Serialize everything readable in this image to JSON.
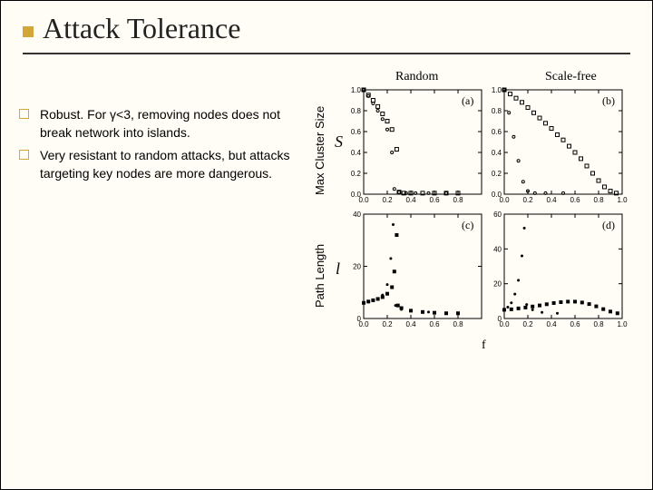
{
  "title": "Attack Tolerance",
  "bullets": [
    "Robust.  For γ<3, removing nodes does not break network into islands.",
    "Very resistant to random attacks, but attacks targeting key nodes are more dangerous."
  ],
  "vertical_labels": {
    "top": "Max Cluster Size",
    "bottom": "Path Length"
  },
  "column_headers": {
    "left": "Random",
    "right": "Scale-free"
  },
  "axis_symbols": {
    "row1_y": "S",
    "row2_y": "l",
    "x": "f"
  },
  "panels": {
    "a": {
      "letter": "(a)",
      "xlim": [
        0.0,
        1.0
      ],
      "xticks": [
        0.0,
        0.2,
        0.4,
        0.6,
        0.8
      ],
      "ylim": [
        0.0,
        1.0
      ],
      "yticks": [
        0.0,
        0.2,
        0.4,
        0.6,
        0.8,
        1.0
      ],
      "series_squares": {
        "marker": "open-square",
        "size": 4,
        "points": [
          [
            0.0,
            1.0
          ],
          [
            0.04,
            0.95
          ],
          [
            0.08,
            0.9
          ],
          [
            0.12,
            0.84
          ],
          [
            0.16,
            0.77
          ],
          [
            0.2,
            0.7
          ],
          [
            0.24,
            0.62
          ],
          [
            0.28,
            0.43
          ],
          [
            0.3,
            0.02
          ],
          [
            0.34,
            0.01
          ],
          [
            0.4,
            0.01
          ],
          [
            0.5,
            0.01
          ],
          [
            0.6,
            0.01
          ],
          [
            0.7,
            0.01
          ],
          [
            0.8,
            0.01
          ]
        ]
      },
      "series_circles": {
        "marker": "open-circle",
        "size": 3,
        "points": [
          [
            0.0,
            1.0
          ],
          [
            0.04,
            0.94
          ],
          [
            0.08,
            0.87
          ],
          [
            0.12,
            0.8
          ],
          [
            0.16,
            0.72
          ],
          [
            0.2,
            0.62
          ],
          [
            0.24,
            0.4
          ],
          [
            0.26,
            0.05
          ],
          [
            0.3,
            0.02
          ],
          [
            0.36,
            0.01
          ],
          [
            0.44,
            0.01
          ],
          [
            0.55,
            0.01
          ],
          [
            0.7,
            0.01
          ]
        ]
      }
    },
    "b": {
      "letter": "(b)",
      "xlim": [
        0.0,
        1.0
      ],
      "xticks": [
        0.0,
        0.2,
        0.4,
        0.6,
        0.8,
        1.0
      ],
      "ylim": [
        0.0,
        1.0
      ],
      "yticks": [
        0.0,
        0.2,
        0.4,
        0.6,
        0.8,
        1.0
      ],
      "series_squares": {
        "marker": "open-square",
        "size": 4,
        "points": [
          [
            0.0,
            1.0
          ],
          [
            0.05,
            0.96
          ],
          [
            0.1,
            0.92
          ],
          [
            0.15,
            0.88
          ],
          [
            0.2,
            0.83
          ],
          [
            0.25,
            0.78
          ],
          [
            0.3,
            0.73
          ],
          [
            0.35,
            0.68
          ],
          [
            0.4,
            0.63
          ],
          [
            0.45,
            0.57
          ],
          [
            0.5,
            0.52
          ],
          [
            0.55,
            0.46
          ],
          [
            0.6,
            0.4
          ],
          [
            0.65,
            0.34
          ],
          [
            0.7,
            0.27
          ],
          [
            0.75,
            0.2
          ],
          [
            0.8,
            0.13
          ],
          [
            0.85,
            0.07
          ],
          [
            0.9,
            0.03
          ],
          [
            0.95,
            0.01
          ]
        ]
      },
      "series_circles": {
        "marker": "open-circle",
        "size": 3,
        "points": [
          [
            0.0,
            1.0
          ],
          [
            0.04,
            0.78
          ],
          [
            0.08,
            0.55
          ],
          [
            0.12,
            0.32
          ],
          [
            0.16,
            0.12
          ],
          [
            0.2,
            0.03
          ],
          [
            0.26,
            0.01
          ],
          [
            0.35,
            0.01
          ],
          [
            0.5,
            0.01
          ]
        ]
      }
    },
    "c": {
      "letter": "(c)",
      "xlim": [
        0.0,
        1.0
      ],
      "xticks": [
        0.0,
        0.2,
        0.4,
        0.6,
        0.8
      ],
      "ylim": [
        0,
        40
      ],
      "yticks": [
        0,
        20,
        40
      ],
      "series_fill_sq": {
        "marker": "fill-square",
        "size": 4,
        "points": [
          [
            0.0,
            6
          ],
          [
            0.04,
            6.5
          ],
          [
            0.08,
            7
          ],
          [
            0.12,
            7.5
          ],
          [
            0.16,
            8.2
          ],
          [
            0.2,
            9.5
          ],
          [
            0.24,
            12
          ],
          [
            0.26,
            18
          ],
          [
            0.28,
            32
          ],
          [
            0.29,
            5
          ],
          [
            0.32,
            4
          ],
          [
            0.4,
            3
          ],
          [
            0.5,
            2.5
          ],
          [
            0.6,
            2.2
          ],
          [
            0.7,
            2
          ],
          [
            0.8,
            2
          ]
        ]
      },
      "series_fill_c": {
        "marker": "fill-circle",
        "size": 3,
        "points": [
          [
            0.0,
            6
          ],
          [
            0.04,
            6.3
          ],
          [
            0.08,
            6.8
          ],
          [
            0.12,
            7.5
          ],
          [
            0.16,
            9
          ],
          [
            0.2,
            13
          ],
          [
            0.23,
            23
          ],
          [
            0.25,
            36
          ],
          [
            0.27,
            5
          ],
          [
            0.32,
            3.5
          ],
          [
            0.4,
            3
          ],
          [
            0.55,
            2.5
          ]
        ]
      }
    },
    "d": {
      "letter": "(d)",
      "xlim": [
        0.0,
        1.0
      ],
      "xticks": [
        0.0,
        0.2,
        0.4,
        0.6,
        0.8,
        1.0
      ],
      "ylim": [
        0,
        60
      ],
      "yticks": [
        0,
        20,
        40,
        60
      ],
      "series_fill_sq": {
        "marker": "fill-square",
        "size": 4,
        "points": [
          [
            0.0,
            5
          ],
          [
            0.06,
            5.3
          ],
          [
            0.12,
            5.8
          ],
          [
            0.18,
            6.3
          ],
          [
            0.24,
            6.9
          ],
          [
            0.3,
            7.5
          ],
          [
            0.36,
            8.2
          ],
          [
            0.42,
            8.9
          ],
          [
            0.48,
            9.4
          ],
          [
            0.54,
            9.7
          ],
          [
            0.6,
            9.7
          ],
          [
            0.66,
            9.2
          ],
          [
            0.72,
            8.3
          ],
          [
            0.78,
            7.0
          ],
          [
            0.84,
            5.4
          ],
          [
            0.9,
            4.0
          ],
          [
            0.96,
            3.0
          ]
        ]
      },
      "series_fill_c": {
        "marker": "fill-circle",
        "size": 3,
        "points": [
          [
            0.0,
            5
          ],
          [
            0.03,
            6.5
          ],
          [
            0.06,
            9
          ],
          [
            0.09,
            14
          ],
          [
            0.12,
            22
          ],
          [
            0.15,
            36
          ],
          [
            0.17,
            52
          ],
          [
            0.19,
            8
          ],
          [
            0.24,
            5
          ],
          [
            0.32,
            3.5
          ],
          [
            0.45,
            3
          ]
        ]
      }
    }
  },
  "colors": {
    "background": "#fffdf5",
    "accent": "#d4a538",
    "text": "#000000",
    "underline": "#333333"
  },
  "font": {
    "title_size": 32,
    "body_size": 14,
    "tick_size": 8
  }
}
